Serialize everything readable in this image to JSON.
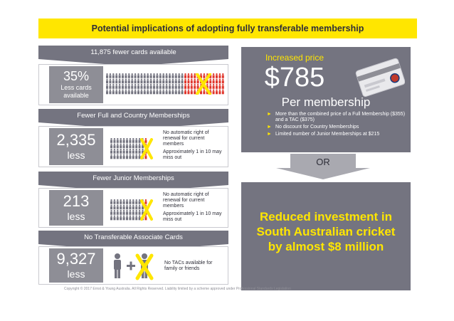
{
  "title": "Potential implications of adopting fully transferable membership",
  "sections": [
    {
      "header": "11,875 fewer cards available",
      "stat": "35%",
      "stat_sub": "Less cards available"
    },
    {
      "header": "Fewer Full and Country Memberships",
      "stat": "2,335",
      "stat_sub": "less",
      "note1": "No automatic right of renewal for current members",
      "note2": "Approximately 1 in 10 may miss out"
    },
    {
      "header": "Fewer Junior Memberships",
      "stat": "213",
      "stat_sub": "less",
      "note1": "No automatic right of renewal for current members",
      "note2": "Approximately 1 in 10 may miss out"
    },
    {
      "header": "No Transferable Associate Cards",
      "stat": "9,327",
      "stat_sub": "less",
      "note1": "No TACs available for family or friends"
    }
  ],
  "price": {
    "label": "Increased price",
    "amount": "$785",
    "per": "Per membership",
    "bullets": [
      "More than the combined price of a Full Membership ($355) and a TAC ($375)",
      "No discount for Country Memberships",
      "Limited number of Junior Memberships at $215"
    ]
  },
  "or_label": "OR",
  "investment": {
    "line1": "Reduced investment in",
    "line2": "South Australian cricket",
    "line3": "by almost $8 million"
  },
  "copyright": "Copyright © 2017 Ernst & Young Australia. All Rights Reserved. Liability limited by a scheme approved under Professional Standards Legislation",
  "colors": {
    "yellow": "#ffe600",
    "dark_grey": "#747480",
    "light_grey": "#8e8e96",
    "red_people": "#e0362c",
    "text_dark": "#2e2e38"
  }
}
